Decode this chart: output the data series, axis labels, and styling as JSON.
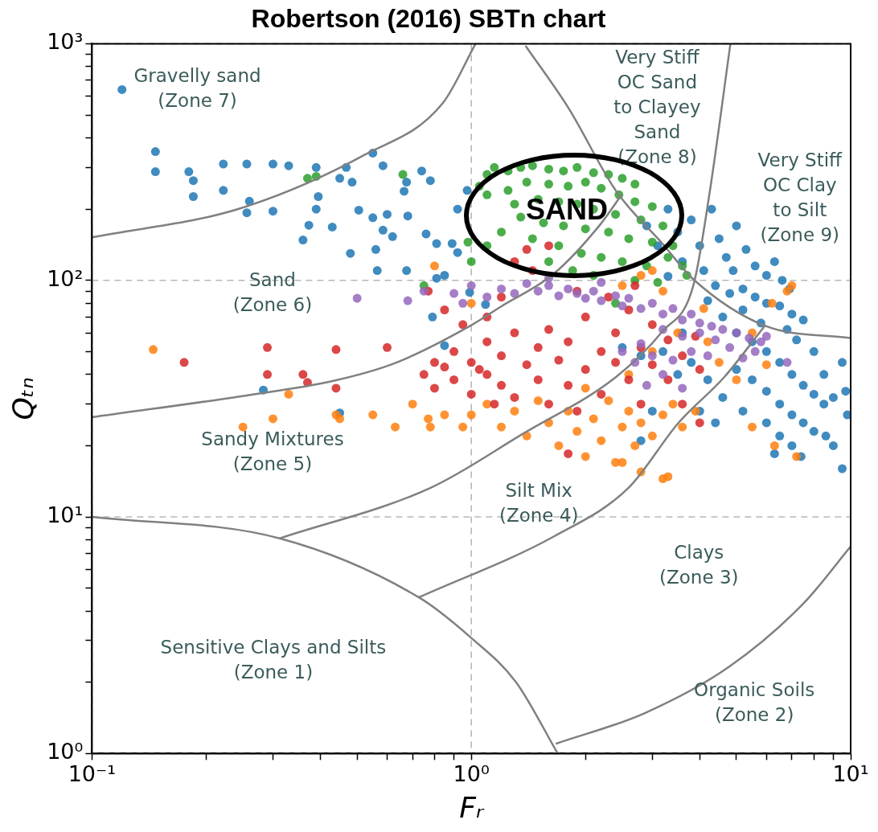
{
  "chart_data": {
    "type": "scatter",
    "title": "Robertson (2016) SBTn chart",
    "xlabel": "Fᵣ",
    "ylabel": "Qₜₙ",
    "log": "xy",
    "grid": true,
    "legend": false,
    "xlim": [
      0.1,
      10
    ],
    "ylim": [
      1,
      1000
    ],
    "xticks": [
      {
        "value": 0.1,
        "label": "10⁻¹"
      },
      {
        "value": 0.2,
        "label": null
      },
      {
        "value": 0.3,
        "label": null
      },
      {
        "value": 0.4,
        "label": null
      },
      {
        "value": 0.5,
        "label": null
      },
      {
        "value": 0.6,
        "label": null
      },
      {
        "value": 0.7,
        "label": null
      },
      {
        "value": 0.8,
        "label": null
      },
      {
        "value": 0.9,
        "label": null
      },
      {
        "value": 1,
        "label": "10⁰"
      },
      {
        "value": 2,
        "label": null
      },
      {
        "value": 3,
        "label": null
      },
      {
        "value": 4,
        "label": null
      },
      {
        "value": 5,
        "label": null
      },
      {
        "value": 6,
        "label": null
      },
      {
        "value": 7,
        "label": null
      },
      {
        "value": 8,
        "label": null
      },
      {
        "value": 9,
        "label": null
      },
      {
        "value": 10,
        "label": "10¹"
      }
    ],
    "yticks": [
      {
        "value": 1,
        "label": "10⁰"
      },
      {
        "value": 2,
        "label": null
      },
      {
        "value": 3,
        "label": null
      },
      {
        "value": 4,
        "label": null
      },
      {
        "value": 5,
        "label": null
      },
      {
        "value": 6,
        "label": null
      },
      {
        "value": 7,
        "label": null
      },
      {
        "value": 8,
        "label": null
      },
      {
        "value": 9,
        "label": null
      },
      {
        "value": 10,
        "label": "10¹"
      },
      {
        "value": 20,
        "label": null
      },
      {
        "value": 30,
        "label": null
      },
      {
        "value": 40,
        "label": null
      },
      {
        "value": 50,
        "label": null
      },
      {
        "value": 60,
        "label": null
      },
      {
        "value": 70,
        "label": null
      },
      {
        "value": 80,
        "label": null
      },
      {
        "value": 90,
        "label": null
      },
      {
        "value": 100,
        "label": "10²"
      },
      {
        "value": 200,
        "label": null
      },
      {
        "value": 300,
        "label": null
      },
      {
        "value": 400,
        "label": null
      },
      {
        "value": 500,
        "label": null
      },
      {
        "value": 600,
        "label": null
      },
      {
        "value": 700,
        "label": null
      },
      {
        "value": 800,
        "label": null
      },
      {
        "value": 900,
        "label": null
      },
      {
        "value": 1000,
        "label": "10³"
      }
    ],
    "series": [
      {
        "color": "#1f77b4",
        "marker": "circle",
        "x": [
          0.12,
          0.147,
          0.147,
          0.18,
          0.185,
          0.222,
          0.256,
          0.3,
          0.222,
          0.185,
          0.26,
          0.256,
          0.3,
          0.33,
          0.39,
          0.468,
          0.45,
          0.395,
          0.39,
          0.373,
          0.36,
          0.43,
          0.485,
          0.55,
          0.585,
          0.74,
          0.78,
          0.675,
          0.665,
          0.505,
          0.55,
          0.6,
          0.68,
          0.585,
          0.62,
          0.76,
          0.81,
          0.48,
          0.56,
          0.565,
          0.675,
          0.85,
          0.81,
          0.89,
          0.92,
          0.99,
          1.09,
          0.79,
          0.85,
          0.92,
          0.975,
          0.283,
          0.45,
          2.9,
          3.1,
          3.3,
          3.5,
          3.6,
          3.8,
          4.0,
          4.1,
          4.3,
          4.5,
          4.7,
          5.0,
          5.3,
          5.6,
          6.0,
          6.3,
          6.6,
          3.3,
          4.4,
          4.8,
          5.2,
          5.6,
          6.0,
          6.5,
          7.0,
          7.5,
          4.6,
          5.0,
          5.5,
          6.0,
          6.5,
          7.0,
          7.5,
          8.0,
          8.5,
          5.0,
          5.5,
          6.0,
          6.5,
          7.0,
          7.5,
          8.0,
          9.0,
          9.5,
          6.0,
          6.5,
          7.0,
          5.2,
          4.6,
          4.2,
          3.8,
          3.5,
          4.0,
          4.4,
          8.5,
          9.0,
          9.8,
          9.5,
          8.0,
          7.2,
          6.8,
          5.8,
          5.2,
          4.2,
          3.6,
          3.2,
          2.8,
          2.5,
          6.3,
          7.4,
          8.6,
          3.0,
          2.8,
          9.7,
          4.9,
          6.9
        ],
        "values": [
          640,
          350,
          288,
          288,
          264,
          310,
          310,
          310,
          240,
          226,
          216,
          193,
          196,
          305,
          300,
          300,
          270,
          226,
          200,
          171,
          148,
          168,
          260,
          345,
          305,
          290,
          264,
          260,
          238,
          198,
          184,
          190,
          187,
          163,
          153,
          157,
          143,
          130,
          135,
          110,
          110,
          105,
          102,
          143,
          131,
          89,
          79,
          70,
          53,
          200,
          240,
          34.4,
          27.5,
          170,
          140,
          200,
          160,
          120,
          180,
          140,
          110,
          200,
          150,
          125,
          170,
          135,
          115,
          105,
          120,
          100,
          104,
          95,
          88,
          92,
          85,
          80,
          78,
          72,
          68,
          70,
          60,
          55,
          50,
          45,
          40,
          36,
          33,
          30,
          42,
          38,
          34,
          30,
          27,
          25,
          23,
          20,
          16,
          25,
          22,
          20,
          28,
          32,
          38,
          45,
          40,
          28,
          25,
          40,
          32,
          27,
          45,
          50,
          56,
          62,
          66,
          75,
          82,
          60,
          50,
          48,
          52,
          18.5,
          18,
          22,
          28,
          21,
          34,
          110,
          92
        ]
      },
      {
        "color": "#2ca02c",
        "marker": "circle",
        "x": [
          0.37,
          0.39,
          0.66,
          0.75,
          0.98,
          1.05,
          1.1,
          1.15,
          1.25,
          1.35,
          1.45,
          1.6,
          1.75,
          1.9,
          2.1,
          2.3,
          2.5,
          2.7,
          1.1,
          1.25,
          1.4,
          1.6,
          1.8,
          2.0,
          2.2,
          2.45,
          2.7,
          3.0,
          1.3,
          1.5,
          1.7,
          1.9,
          2.1,
          2.4,
          2.8,
          3.2,
          1.35,
          1.55,
          1.75,
          2.0,
          2.3,
          2.6,
          3.0,
          3.4,
          1.45,
          1.7,
          1.95,
          2.2,
          2.5,
          2.9,
          1.6,
          1.85,
          1.2,
          1.1,
          3.3,
          3.6,
          2.1,
          2.7,
          3.1,
          2.4,
          3.7,
          1.0
        ],
        "values": [
          270,
          275,
          280,
          95,
          145,
          250,
          280,
          300,
          290,
          300,
          305,
          295,
          290,
          300,
          285,
          280,
          270,
          255,
          230,
          240,
          260,
          255,
          250,
          260,
          245,
          230,
          215,
          205,
          210,
          220,
          215,
          210,
          200,
          190,
          180,
          170,
          185,
          175,
          170,
          165,
          160,
          150,
          145,
          140,
          150,
          140,
          130,
          125,
          120,
          115,
          120,
          110,
          160,
          140,
          125,
          115,
          105,
          100,
          98,
          80,
          105,
          120
        ]
      },
      {
        "color": "#ff7f0e",
        "marker": "circle",
        "x": [
          0.145,
          0.25,
          0.3,
          0.33,
          0.44,
          0.45,
          0.55,
          0.63,
          0.7,
          0.77,
          0.78,
          0.85,
          0.95,
          0.8,
          1.0,
          1.0,
          1.1,
          1.2,
          1.3,
          1.4,
          1.5,
          1.6,
          1.7,
          1.8,
          1.9,
          2.0,
          2.1,
          2.2,
          2.3,
          2.4,
          2.5,
          2.6,
          2.7,
          2.8,
          3.0,
          3.2,
          3.4,
          3.6,
          3.9,
          2.8,
          3.2,
          3.3,
          2.5,
          2.0,
          2.6,
          3.0,
          3.5,
          4.1,
          4.2,
          4.5,
          5.0,
          5.5,
          6.2,
          6.8,
          7.0,
          6.0,
          5.5,
          6.3,
          7.2,
          2.5,
          2.8,
          3.2,
          3.0
        ],
        "values": [
          51,
          24,
          26,
          33,
          27,
          26,
          27,
          24,
          30,
          26,
          24,
          27,
          24,
          115,
          80,
          27,
          30,
          24,
          28,
          22,
          31,
          25,
          20,
          28,
          23,
          18,
          26,
          21,
          31,
          17,
          24,
          28,
          20,
          25,
          22,
          27,
          30,
          24,
          28,
          15.5,
          14.5,
          14.8,
          17,
          35,
          40,
          50,
          60,
          76,
          55,
          45,
          38,
          60,
          80,
          90,
          95,
          44,
          24,
          20,
          18,
          95,
          105,
          90,
          110
        ]
      },
      {
        "color": "#d62728",
        "marker": "circle",
        "x": [
          0.175,
          0.29,
          0.29,
          0.36,
          0.37,
          0.44,
          0.44,
          0.6,
          0.77,
          0.85,
          0.95,
          1.1,
          1.2,
          1.3,
          1.45,
          1.6,
          1.4,
          0.75,
          0.8,
          0.8,
          0.9,
          0.9,
          1.0,
          1.0,
          1.1,
          1.1,
          1.2,
          1.2,
          1.3,
          1.3,
          1.4,
          1.5,
          1.5,
          1.6,
          1.6,
          1.7,
          1.8,
          1.8,
          1.9,
          2.0,
          2.0,
          2.2,
          2.2,
          2.4,
          2.4,
          2.6,
          2.6,
          2.8,
          2.8,
          3.0,
          3.0,
          3.3,
          3.3,
          3.6,
          3.6,
          4.0,
          4.0,
          2.3,
          1.9,
          2.7,
          1.05,
          0.85,
          1.15,
          3.9,
          1.8
        ],
        "values": [
          45,
          52,
          40,
          40,
          37,
          51,
          35,
          52,
          90,
          75,
          65,
          70,
          85,
          120,
          110,
          140,
          135,
          40,
          35,
          45,
          50,
          38,
          33,
          45,
          55,
          40,
          36,
          48,
          32,
          60,
          44,
          38,
          52,
          30,
          62,
          46,
          36,
          55,
          28,
          42,
          70,
          50,
          33,
          45,
          60,
          38,
          75,
          52,
          30,
          44,
          65,
          38,
          56,
          48,
          30,
          42,
          25,
          85,
          90,
          95,
          42,
          43,
          30,
          58,
          18.5
        ]
      },
      {
        "color": "#9467bd",
        "marker": "circle",
        "x": [
          0.5,
          0.68,
          0.75,
          0.9,
          1.0,
          1.1,
          1.2,
          1.3,
          1.4,
          1.5,
          1.6,
          1.7,
          1.8,
          1.9,
          2.0,
          2.1,
          2.2,
          2.4,
          2.5,
          2.6,
          2.8,
          3.0,
          3.2,
          3.4,
          3.6,
          3.8,
          4.0,
          4.3,
          4.6,
          5.0,
          5.4,
          5.8,
          6.0,
          4.8,
          4.4,
          4.0,
          3.6,
          3.2,
          2.8,
          2.5,
          2.7,
          3.0,
          3.4,
          3.8,
          4.2,
          5.2,
          5.6,
          3.2,
          2.9,
          3.6,
          6.8,
          1.6,
          2.2,
          0.95
        ],
        "values": [
          84,
          82,
          90,
          88,
          95,
          85,
          92,
          88,
          97,
          90,
          95,
          86,
          92,
          88,
          84,
          90,
          82,
          86,
          78,
          84,
          76,
          80,
          72,
          76,
          68,
          72,
          66,
          64,
          62,
          60,
          57,
          55,
          58,
          52,
          56,
          60,
          58,
          62,
          54,
          50,
          45,
          48,
          46,
          50,
          48,
          47,
          50,
          40,
          36,
          35,
          45,
          102,
          98,
          80
        ]
      },
      {
        "type": "line",
        "marker": "none",
        "color": "#808080",
        "x": [
          0.1,
          0.245,
          0.523,
          0.841,
          1.026
        ],
        "values": [
          152,
          201,
          339,
          561,
          1000
        ]
      },
      {
        "type": "line",
        "marker": "none",
        "color": "#808080",
        "x": [
          0.1,
          0.245,
          0.433,
          0.632,
          0.995,
          1.196,
          1.65,
          2.18,
          2.49
        ],
        "values": [
          26.4,
          32.3,
          37.6,
          44.8,
          64.3,
          77.4,
          106.6,
          171,
          230
        ]
      },
      {
        "type": "line",
        "marker": "none",
        "color": "#808080",
        "x": [
          1.39,
          1.81,
          2.41,
          3.19,
          3.85,
          5.94,
          10
        ],
        "values": [
          980,
          530,
          238,
          143,
          101,
          64.3,
          57
        ]
      },
      {
        "type": "line",
        "marker": "none",
        "color": "#808080",
        "x": [
          0.312,
          0.783,
          1.37,
          2.41,
          3.19,
          3.85,
          4.24,
          4.82
        ],
        "values": [
          8.11,
          13.3,
          22.5,
          39.1,
          60.8,
          95.3,
          230,
          1000
        ]
      },
      {
        "type": "line",
        "marker": "none",
        "color": "#808080",
        "x": [
          0.725,
          1.66,
          2.6,
          3.51,
          4.65,
          5.94
        ],
        "values": [
          4.56,
          8.31,
          13.3,
          24.9,
          39.1,
          64.3
        ]
      },
      {
        "type": "line",
        "marker": "none",
        "color": "#808080",
        "x": [
          0.1,
          0.314,
          0.729,
          1.0,
          1.31,
          1.69
        ],
        "values": [
          10,
          8.1,
          4.56,
          3.08,
          2.01,
          1
        ]
      },
      {
        "type": "line",
        "marker": "none",
        "color": "#808080",
        "x": [
          1.67,
          2.86,
          4.77,
          7.51,
          10
        ],
        "values": [
          1.1,
          1.48,
          2.32,
          4.31,
          7.5
        ]
      }
    ],
    "annotations": [
      "Gravelly sand\n(Zone 7)",
      "Sand\n(Zone 6)",
      "Sandy Mixtures\n(Zone 5)",
      "Silt Mix\n(Zone 4)",
      "Clays\n(Zone 3)",
      "Sensitive Clays and Silts\n(Zone 1)",
      "Organic Soils\n(Zone 2)",
      "Very Stiff\nOC Sand\nto Clayey\nSand\n(Zone 8)",
      "Very Stiff\nOC Clay\nto Silt\n(Zone 9)",
      "SAND"
    ]
  }
}
